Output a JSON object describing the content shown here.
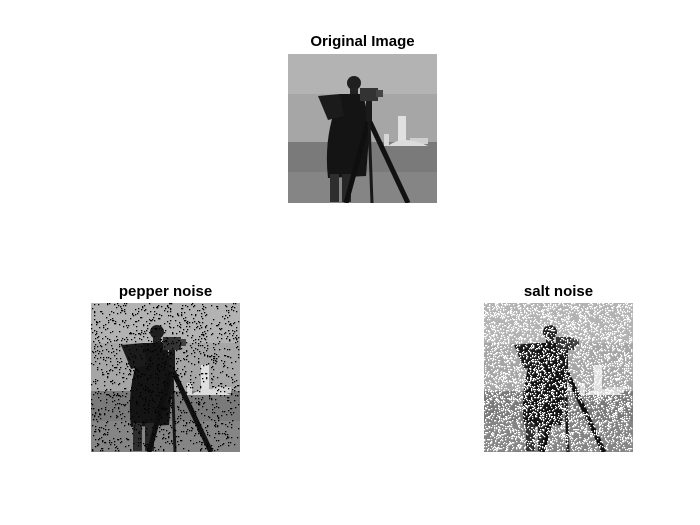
{
  "panels": [
    {
      "title": "Original Image",
      "noise": "none"
    },
    {
      "title": "pepper noise",
      "noise": "pepper",
      "noise_density": 0.08
    },
    {
      "title": "salt noise",
      "noise": "salt",
      "noise_density": 0.3
    }
  ],
  "colors": {
    "background": "#ffffff",
    "text": "#000000",
    "sky": "#a6a6a6",
    "grass": "#7d7d7d",
    "figure": "#1a1a1a"
  }
}
